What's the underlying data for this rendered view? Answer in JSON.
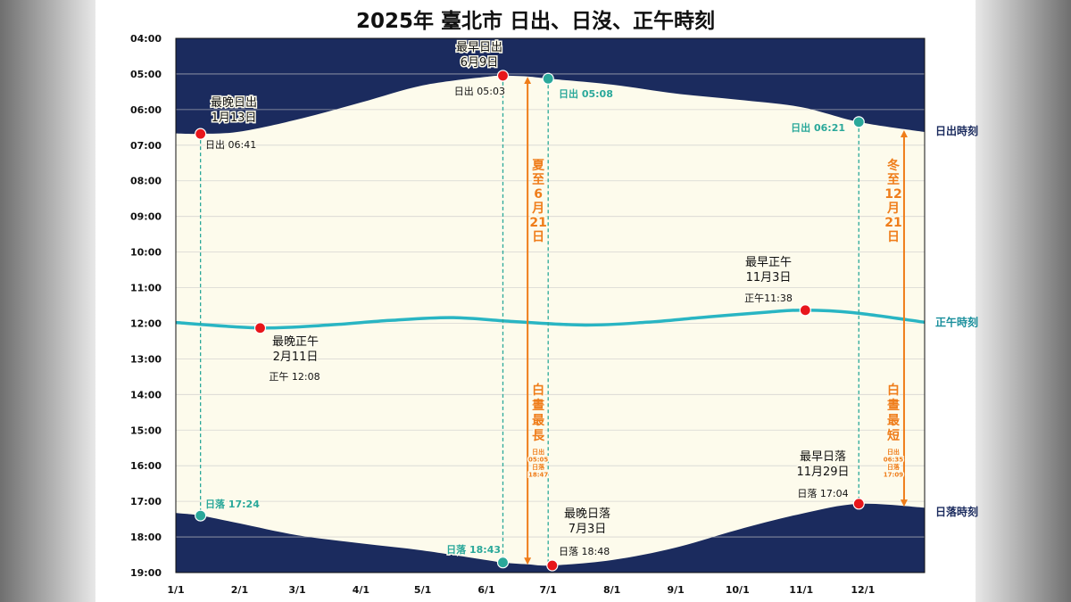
{
  "title": "2025年 臺北市 日出、日沒、正午時刻",
  "colors": {
    "night": "#1b2b5e",
    "day": "#fdfbec",
    "noon_line": "#29b5c3",
    "highlight_red": "#e8161b",
    "highlight_teal": "#2aa89a",
    "arrow_orange": "#ef7d1a",
    "side_label": "#1b2b5e",
    "noon_label": "#1a8f9c"
  },
  "chart_data": {
    "type": "area",
    "x_axis": {
      "labels": [
        "1/1",
        "2/1",
        "3/1",
        "4/1",
        "5/1",
        "6/1",
        "7/1",
        "8/1",
        "9/1",
        "10/1",
        "11/1",
        "12/1"
      ],
      "day_of_year": [
        1,
        32,
        60,
        91,
        121,
        152,
        182,
        213,
        244,
        274,
        305,
        335
      ],
      "range": [
        1,
        365
      ]
    },
    "y_axis": {
      "labels": [
        "04:00",
        "05:00",
        "06:00",
        "07:00",
        "08:00",
        "09:00",
        "10:00",
        "11:00",
        "12:00",
        "13:00",
        "14:00",
        "15:00",
        "16:00",
        "17:00",
        "18:00",
        "19:00"
      ],
      "range_hours": [
        4,
        19
      ],
      "inverted": true
    },
    "series": [
      {
        "name": "日出時刻",
        "x_day": [
          1,
          13,
          32,
          60,
          91,
          121,
          152,
          160,
          172,
          182,
          213,
          244,
          274,
          305,
          333,
          365
        ],
        "y_hours": [
          6.67,
          6.68,
          6.62,
          6.28,
          5.8,
          5.32,
          5.08,
          5.05,
          5.07,
          5.13,
          5.3,
          5.55,
          5.72,
          5.93,
          6.35,
          6.63
        ]
      },
      {
        "name": "正午時刻",
        "x_day": [
          1,
          42,
          75,
          105,
          135,
          165,
          200,
          230,
          260,
          290,
          307,
          330,
          365
        ],
        "y_hours": [
          11.98,
          12.13,
          12.05,
          11.92,
          11.84,
          11.95,
          12.05,
          11.97,
          11.82,
          11.68,
          11.63,
          11.7,
          11.97
        ]
      },
      {
        "name": "日落時刻",
        "x_day": [
          1,
          13,
          32,
          60,
          91,
          121,
          152,
          160,
          172,
          184,
          213,
          244,
          274,
          305,
          333,
          365
        ],
        "y_hours": [
          17.33,
          17.4,
          17.62,
          17.95,
          18.18,
          18.38,
          18.65,
          18.72,
          18.77,
          18.8,
          18.65,
          18.3,
          17.8,
          17.35,
          17.07,
          17.18
        ]
      }
    ],
    "side_labels": [
      "日出時刻",
      "正午時刻",
      "日落時刻"
    ],
    "annotations": [
      {
        "kind": "red",
        "series": "sunrise",
        "x_day": 13,
        "y_hours": 6.683,
        "title1": "最晚日出",
        "title2": "1月13日",
        "value": "日出 06:41"
      },
      {
        "kind": "red",
        "series": "sunrise",
        "x_day": 160,
        "y_hours": 5.05,
        "title1": "最早日出",
        "title2": "6月9日",
        "value": "日出 05:03"
      },
      {
        "kind": "teal",
        "series": "sunrise",
        "x_day": 182,
        "y_hours": 5.133,
        "value": "日出 05:08"
      },
      {
        "kind": "teal",
        "series": "sunrise",
        "x_day": 333,
        "y_hours": 6.35,
        "value": "日出 06:21"
      },
      {
        "kind": "red",
        "series": "noon",
        "x_day": 42,
        "y_hours": 12.133,
        "title1": "最晚正午",
        "title2": "2月11日",
        "value": "正午 12:08"
      },
      {
        "kind": "red",
        "series": "noon",
        "x_day": 307,
        "y_hours": 11.633,
        "title1": "最早正午",
        "title2": "11月3日",
        "value": "正午11:38"
      },
      {
        "kind": "teal",
        "series": "sunset",
        "x_day": 13,
        "y_hours": 17.4,
        "value": "日落 17:24"
      },
      {
        "kind": "teal",
        "series": "sunset",
        "x_day": 160,
        "y_hours": 18.717,
        "value": "日落 18:43"
      },
      {
        "kind": "red",
        "series": "sunset",
        "x_day": 184,
        "y_hours": 18.8,
        "title1": "最晚日落",
        "title2": "7月3日",
        "value": "日落 18:48"
      },
      {
        "kind": "red",
        "series": "sunset",
        "x_day": 333,
        "y_hours": 17.067,
        "title1": "最早日落",
        "title2": "11月29日",
        "value": "日落 17:04"
      }
    ],
    "solstices": [
      {
        "title": [
          "夏",
          "至",
          "6",
          "月",
          "21",
          "日"
        ],
        "caption": [
          "白",
          "晝",
          "最",
          "長"
        ],
        "detail": [
          "日出",
          "05:05",
          "日落",
          "18:47"
        ]
      },
      {
        "title": [
          "冬",
          "至",
          "12",
          "月",
          "21",
          "日"
        ],
        "caption": [
          "白",
          "晝",
          "最",
          "短"
        ],
        "detail": [
          "日出",
          "06:35",
          "日落",
          "17:09"
        ]
      }
    ]
  }
}
